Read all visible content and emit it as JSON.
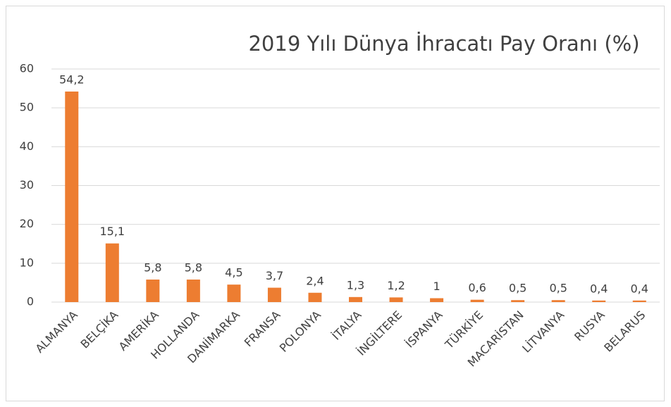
{
  "chart_data": {
    "type": "bar",
    "title": "2019 Yılı Dünya İhracatı Pay Oranı (%)",
    "categories": [
      "ALMANYA",
      "BELÇİKA",
      "AMERİKA",
      "HOLLANDA",
      "DANİMARKA",
      "FRANSA",
      "POLONYA",
      "İTALYA",
      "İNGİLTERE",
      "İSPANYA",
      "TÜRKİYE",
      "MACARİSTAN",
      "LİTVANYA",
      "RUSYA",
      "BELARUS"
    ],
    "values": [
      54.2,
      15.1,
      5.8,
      5.8,
      4.5,
      3.7,
      2.4,
      1.3,
      1.2,
      1,
      0.6,
      0.5,
      0.5,
      0.4,
      0.4
    ],
    "value_labels": [
      "54,2",
      "15,1",
      "5,8",
      "5,8",
      "4,5",
      "3,7",
      "2,4",
      "1,3",
      "1,2",
      "1",
      "0,6",
      "0,5",
      "0,5",
      "0,4",
      "0,4"
    ],
    "color": "#ed7d31",
    "ylim": [
      0,
      60
    ],
    "yticks": [
      0,
      10,
      20,
      30,
      40,
      50,
      60
    ],
    "grid": true
  }
}
